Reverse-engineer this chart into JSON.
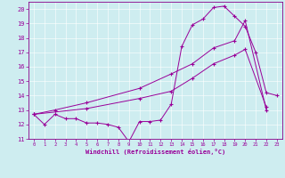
{
  "xlabel": "Windchill (Refroidissement éolien,°C)",
  "bg_color": "#ceedf0",
  "line_color": "#990099",
  "grid_color": "#b0d8dc",
  "spine_color": "#880088",
  "xlim": [
    -0.5,
    23.5
  ],
  "ylim": [
    11,
    20.5
  ],
  "yticks": [
    11,
    12,
    13,
    14,
    15,
    16,
    17,
    18,
    19,
    20
  ],
  "xticks": [
    0,
    1,
    2,
    3,
    4,
    5,
    6,
    7,
    8,
    9,
    10,
    11,
    12,
    13,
    14,
    15,
    16,
    17,
    18,
    19,
    20,
    21,
    22,
    23
  ],
  "series1": [
    [
      0,
      12.7
    ],
    [
      1,
      12.0
    ],
    [
      2,
      12.7
    ],
    [
      3,
      12.4
    ],
    [
      4,
      12.4
    ],
    [
      5,
      12.1
    ],
    [
      6,
      12.1
    ],
    [
      7,
      12.0
    ],
    [
      8,
      11.8
    ],
    [
      9,
      10.8
    ],
    [
      10,
      12.2
    ],
    [
      11,
      12.2
    ],
    [
      12,
      12.3
    ],
    [
      13,
      13.4
    ],
    [
      14,
      17.4
    ],
    [
      15,
      18.9
    ],
    [
      16,
      19.3
    ],
    [
      17,
      20.1
    ],
    [
      18,
      20.2
    ],
    [
      19,
      19.5
    ],
    [
      20,
      18.8
    ],
    [
      21,
      17.0
    ],
    [
      22,
      14.2
    ],
    [
      23,
      14.0
    ]
  ],
  "series2": [
    [
      0,
      12.7
    ],
    [
      2,
      13.0
    ],
    [
      5,
      13.5
    ],
    [
      10,
      14.5
    ],
    [
      13,
      15.5
    ],
    [
      15,
      16.2
    ],
    [
      17,
      17.3
    ],
    [
      19,
      17.8
    ],
    [
      20,
      19.2
    ],
    [
      22,
      13.0
    ]
  ],
  "series3": [
    [
      0,
      12.7
    ],
    [
      5,
      13.1
    ],
    [
      10,
      13.8
    ],
    [
      13,
      14.3
    ],
    [
      15,
      15.2
    ],
    [
      17,
      16.2
    ],
    [
      19,
      16.8
    ],
    [
      20,
      17.2
    ],
    [
      22,
      13.2
    ]
  ]
}
